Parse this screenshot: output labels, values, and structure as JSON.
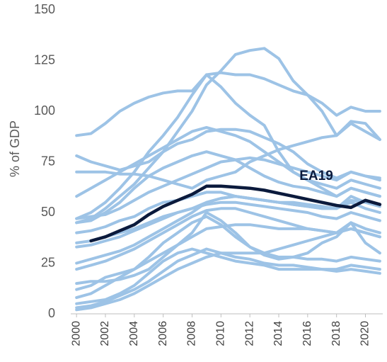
{
  "chart_data": {
    "type": "line",
    "y_label": "% of GDP",
    "x": [
      2000,
      2001,
      2002,
      2003,
      2004,
      2005,
      2006,
      2007,
      2008,
      2009,
      2010,
      2011,
      2012,
      2013,
      2014,
      2015,
      2016,
      2017,
      2018,
      2019,
      2020,
      2021
    ],
    "xlim": [
      1999.6,
      2021.2
    ],
    "xticks": [
      2000,
      2002,
      2004,
      2006,
      2008,
      2010,
      2012,
      2014,
      2016,
      2018,
      2020
    ],
    "ylim": [
      0,
      150
    ],
    "yticks": [
      0,
      25,
      50,
      75,
      100,
      125,
      150
    ],
    "grid": false,
    "series": [
      {
        "color": "#9dc3e6",
        "values": [
          88,
          89,
          94,
          100,
          104,
          107,
          109,
          110,
          110,
          118,
          119,
          118,
          118,
          116,
          113,
          110,
          108,
          104,
          98,
          102,
          100,
          100
        ]
      },
      {
        "color": "#9dc3e6",
        "values": [
          45,
          47,
          52,
          58,
          64,
          72,
          80,
          90,
          100,
          113,
          120,
          128,
          130,
          131,
          126,
          115,
          108,
          100,
          88,
          94,
          90,
          86
        ]
      },
      {
        "color": "#9dc3e6",
        "values": [
          47,
          50,
          55,
          62,
          70,
          80,
          88,
          97,
          108,
          118,
          112,
          104,
          98,
          93,
          80,
          70,
          66,
          62,
          58,
          62,
          60,
          58
        ]
      },
      {
        "color": "#9dc3e6",
        "values": [
          78,
          75,
          73,
          71,
          73,
          75,
          80,
          84,
          86,
          90,
          91,
          91,
          90,
          87,
          84,
          80,
          74,
          70,
          67,
          70,
          68,
          67
        ]
      },
      {
        "color": "#9dc3e6",
        "values": [
          70,
          70,
          70,
          69,
          69,
          68,
          66,
          64,
          62,
          66,
          68,
          70,
          75,
          78,
          81,
          83,
          85,
          87,
          88,
          95,
          94,
          86
        ]
      },
      {
        "color": "#9dc3e6",
        "values": [
          58,
          62,
          66,
          70,
          74,
          78,
          82,
          86,
          90,
          92,
          90,
          88,
          85,
          80,
          75,
          70,
          66,
          64,
          62,
          66,
          64,
          62
        ]
      },
      {
        "color": "#9dc3e6",
        "values": [
          45,
          46,
          50,
          55,
          62,
          68,
          72,
          75,
          78,
          80,
          78,
          76,
          72,
          68,
          65,
          63,
          62,
          60,
          58,
          62,
          60,
          58
        ]
      },
      {
        "color": "#9dc3e6",
        "values": [
          47,
          48,
          49,
          52,
          56,
          60,
          63,
          66,
          69,
          72,
          75,
          76,
          77,
          76,
          74,
          72,
          70,
          68,
          66,
          70,
          68,
          66
        ]
      },
      {
        "color": "#9dc3e6",
        "values": [
          40,
          41,
          43,
          46,
          48,
          52,
          55,
          56,
          58,
          60,
          60,
          58,
          57,
          56,
          55,
          54,
          53,
          52,
          52,
          56,
          55,
          53
        ]
      },
      {
        "color": "#9dc3e6",
        "values": [
          35,
          36,
          38,
          40,
          42,
          45,
          48,
          50,
          52,
          55,
          57,
          58,
          57,
          56,
          55,
          55,
          54,
          53,
          52,
          55,
          52,
          50
        ]
      },
      {
        "color": "#9dc3e6",
        "values": [
          33,
          34,
          36,
          38,
          41,
          44,
          47,
          50,
          52,
          54,
          55,
          55,
          54,
          53,
          52,
          51,
          50,
          48,
          47,
          50,
          48,
          46
        ]
      },
      {
        "color": "#9dc3e6",
        "values": [
          25,
          27,
          29,
          31,
          34,
          38,
          42,
          46,
          50,
          55,
          57,
          58,
          57,
          56,
          55,
          54,
          53,
          52,
          52,
          58,
          55,
          54
        ]
      },
      {
        "color": "#9dc3e6",
        "values": [
          22,
          24,
          26,
          29,
          32,
          36,
          40,
          44,
          48,
          51,
          52,
          52,
          50,
          48,
          46,
          44,
          42,
          41,
          40,
          42,
          40,
          38
        ]
      },
      {
        "color": "#9dc3e6",
        "values": [
          15,
          16,
          16,
          17,
          19,
          22,
          28,
          34,
          40,
          50,
          46,
          40,
          33,
          29,
          27,
          28,
          30,
          35,
          38,
          45,
          42,
          40
        ]
      },
      {
        "color": "#9dc3e6",
        "values": [
          12,
          14,
          18,
          20,
          22,
          26,
          30,
          34,
          38,
          42,
          43,
          44,
          44,
          43,
          42,
          42,
          42,
          41,
          40,
          42,
          40,
          38
        ]
      },
      {
        "color": "#9dc3e6",
        "values": [
          8,
          10,
          14,
          18,
          22,
          28,
          35,
          40,
          45,
          48,
          44,
          38,
          33,
          30,
          28,
          28,
          27,
          27,
          26,
          28,
          27,
          26
        ]
      },
      {
        "color": "#9dc3e6",
        "values": [
          5,
          6,
          7,
          10,
          14,
          20,
          26,
          30,
          32,
          30,
          28,
          26,
          25,
          24,
          22,
          22,
          22,
          22,
          22,
          24,
          23,
          22
        ]
      },
      {
        "color": "#9dc3e6",
        "values": [
          2,
          3,
          5,
          7,
          10,
          14,
          18,
          22,
          25,
          28,
          30,
          30,
          30,
          30,
          32,
          34,
          36,
          38,
          40,
          45,
          35,
          30
        ]
      },
      {
        "color": "#9dc3e6",
        "values": [
          3,
          4,
          6,
          9,
          12,
          16,
          21,
          26,
          29,
          32,
          30,
          28,
          27,
          25,
          24,
          24,
          23,
          22,
          21,
          22,
          21,
          20
        ]
      },
      {
        "name": "EA19",
        "color": "#0b1a3c",
        "values": [
          null,
          36,
          38,
          41,
          44,
          49,
          53,
          56,
          59,
          63,
          63,
          62.5,
          62,
          61,
          59.5,
          58,
          56.5,
          55,
          53.5,
          52.5,
          56,
          54
        ]
      }
    ]
  }
}
